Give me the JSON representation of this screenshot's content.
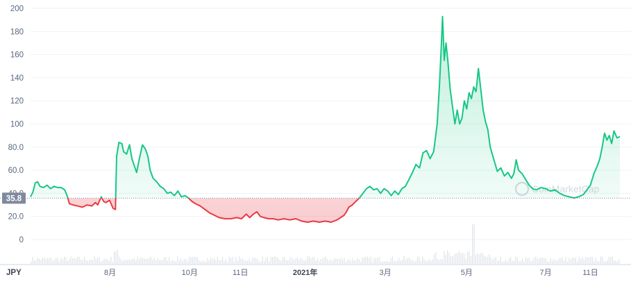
{
  "chart_data": {
    "type": "area",
    "currency_label": "JPY",
    "current_price_label": "35.8",
    "baseline": 35.8,
    "yticks": [
      "200",
      "180",
      "160",
      "140",
      "120",
      "100",
      "80.0",
      "60.0",
      "40.0",
      "20.0",
      "0"
    ],
    "ylim": [
      0,
      200
    ],
    "xticks": [
      {
        "label": "8月",
        "t": 0.135,
        "strong": false
      },
      {
        "label": "10月",
        "t": 0.27,
        "strong": false
      },
      {
        "label": "11日",
        "t": 0.356,
        "strong": false
      },
      {
        "label": "2021年",
        "t": 0.466,
        "strong": true
      },
      {
        "label": "3月",
        "t": 0.602,
        "strong": false
      },
      {
        "label": "5月",
        "t": 0.74,
        "strong": false
      },
      {
        "label": "7月",
        "t": 0.874,
        "strong": false
      },
      {
        "label": "11日",
        "t": 0.95,
        "strong": false
      }
    ],
    "series": [
      {
        "points": [
          [
            0.0,
            37
          ],
          [
            0.004,
            41
          ],
          [
            0.008,
            49
          ],
          [
            0.012,
            50
          ],
          [
            0.016,
            46
          ],
          [
            0.022,
            45
          ],
          [
            0.028,
            47
          ],
          [
            0.034,
            44
          ],
          [
            0.04,
            46
          ],
          [
            0.046,
            45
          ],
          [
            0.052,
            45
          ],
          [
            0.058,
            43
          ],
          [
            0.062,
            38
          ],
          [
            0.066,
            31
          ],
          [
            0.072,
            30
          ],
          [
            0.08,
            29
          ],
          [
            0.088,
            28
          ],
          [
            0.096,
            30
          ],
          [
            0.104,
            29
          ],
          [
            0.11,
            32
          ],
          [
            0.114,
            30
          ],
          [
            0.12,
            37
          ],
          [
            0.124,
            33
          ],
          [
            0.128,
            32
          ],
          [
            0.134,
            34
          ],
          [
            0.14,
            27
          ],
          [
            0.144,
            26
          ],
          [
            0.146,
            72
          ],
          [
            0.15,
            84
          ],
          [
            0.155,
            83
          ],
          [
            0.158,
            76
          ],
          [
            0.163,
            74
          ],
          [
            0.168,
            82
          ],
          [
            0.172,
            70
          ],
          [
            0.176,
            64
          ],
          [
            0.18,
            58
          ],
          [
            0.185,
            71
          ],
          [
            0.19,
            82
          ],
          [
            0.195,
            78
          ],
          [
            0.199,
            72
          ],
          [
            0.203,
            60
          ],
          [
            0.208,
            53
          ],
          [
            0.214,
            50
          ],
          [
            0.22,
            46
          ],
          [
            0.226,
            44
          ],
          [
            0.232,
            40
          ],
          [
            0.238,
            41
          ],
          [
            0.244,
            38
          ],
          [
            0.25,
            42
          ],
          [
            0.256,
            37
          ],
          [
            0.262,
            38
          ],
          [
            0.268,
            36
          ],
          [
            0.274,
            33
          ],
          [
            0.28,
            31
          ],
          [
            0.288,
            29
          ],
          [
            0.296,
            26
          ],
          [
            0.304,
            23
          ],
          [
            0.312,
            21
          ],
          [
            0.32,
            19
          ],
          [
            0.33,
            18
          ],
          [
            0.34,
            18
          ],
          [
            0.35,
            19
          ],
          [
            0.358,
            18
          ],
          [
            0.366,
            22
          ],
          [
            0.372,
            19
          ],
          [
            0.378,
            22
          ],
          [
            0.384,
            24
          ],
          [
            0.39,
            20
          ],
          [
            0.396,
            19
          ],
          [
            0.404,
            18
          ],
          [
            0.412,
            18
          ],
          [
            0.42,
            17
          ],
          [
            0.43,
            18
          ],
          [
            0.44,
            17
          ],
          [
            0.45,
            18
          ],
          [
            0.46,
            16
          ],
          [
            0.47,
            15
          ],
          [
            0.48,
            16
          ],
          [
            0.49,
            15
          ],
          [
            0.5,
            16
          ],
          [
            0.51,
            15
          ],
          [
            0.52,
            17
          ],
          [
            0.526,
            19
          ],
          [
            0.532,
            21
          ],
          [
            0.536,
            24
          ],
          [
            0.54,
            28
          ],
          [
            0.546,
            30
          ],
          [
            0.552,
            33
          ],
          [
            0.558,
            36
          ],
          [
            0.564,
            40
          ],
          [
            0.57,
            44
          ],
          [
            0.576,
            46
          ],
          [
            0.582,
            43
          ],
          [
            0.588,
            44
          ],
          [
            0.594,
            40
          ],
          [
            0.6,
            44
          ],
          [
            0.606,
            42
          ],
          [
            0.612,
            38
          ],
          [
            0.618,
            42
          ],
          [
            0.624,
            39
          ],
          [
            0.63,
            44
          ],
          [
            0.636,
            46
          ],
          [
            0.642,
            52
          ],
          [
            0.648,
            58
          ],
          [
            0.654,
            65
          ],
          [
            0.66,
            62
          ],
          [
            0.666,
            75
          ],
          [
            0.672,
            77
          ],
          [
            0.678,
            70
          ],
          [
            0.684,
            76
          ],
          [
            0.69,
            100
          ],
          [
            0.694,
            135
          ],
          [
            0.697,
            168
          ],
          [
            0.699,
            193
          ],
          [
            0.702,
            155
          ],
          [
            0.705,
            170
          ],
          [
            0.708,
            155
          ],
          [
            0.712,
            130
          ],
          [
            0.716,
            115
          ],
          [
            0.72,
            100
          ],
          [
            0.724,
            112
          ],
          [
            0.728,
            100
          ],
          [
            0.732,
            105
          ],
          [
            0.736,
            120
          ],
          [
            0.74,
            113
          ],
          [
            0.744,
            127
          ],
          [
            0.748,
            122
          ],
          [
            0.752,
            132
          ],
          [
            0.756,
            128
          ],
          [
            0.76,
            148
          ],
          [
            0.764,
            130
          ],
          [
            0.768,
            112
          ],
          [
            0.772,
            102
          ],
          [
            0.776,
            95
          ],
          [
            0.78,
            80
          ],
          [
            0.784,
            73
          ],
          [
            0.788,
            66
          ],
          [
            0.792,
            59
          ],
          [
            0.798,
            62
          ],
          [
            0.804,
            55
          ],
          [
            0.81,
            58
          ],
          [
            0.816,
            53
          ],
          [
            0.82,
            57
          ],
          [
            0.824,
            69
          ],
          [
            0.828,
            60
          ],
          [
            0.834,
            57
          ],
          [
            0.84,
            52
          ],
          [
            0.846,
            47
          ],
          [
            0.852,
            44
          ],
          [
            0.858,
            43
          ],
          [
            0.866,
            45
          ],
          [
            0.874,
            44
          ],
          [
            0.882,
            42
          ],
          [
            0.89,
            43
          ],
          [
            0.898,
            40
          ],
          [
            0.906,
            38
          ],
          [
            0.914,
            37
          ],
          [
            0.922,
            36
          ],
          [
            0.93,
            37
          ],
          [
            0.938,
            39
          ],
          [
            0.944,
            43
          ],
          [
            0.95,
            47
          ],
          [
            0.956,
            57
          ],
          [
            0.962,
            64
          ],
          [
            0.966,
            70
          ],
          [
            0.97,
            80
          ],
          [
            0.974,
            92
          ],
          [
            0.978,
            86
          ],
          [
            0.982,
            90
          ],
          [
            0.986,
            83
          ],
          [
            0.99,
            94
          ],
          [
            0.995,
            88
          ],
          [
            1.0,
            89
          ]
        ]
      }
    ],
    "colors": {
      "up": "#16c784",
      "down": "#ea3943",
      "grid": "#eff2f5",
      "label": "#58667e",
      "baseline_box": "#808a9d"
    },
    "grid": true,
    "watermark": "CoinMarketCap"
  }
}
